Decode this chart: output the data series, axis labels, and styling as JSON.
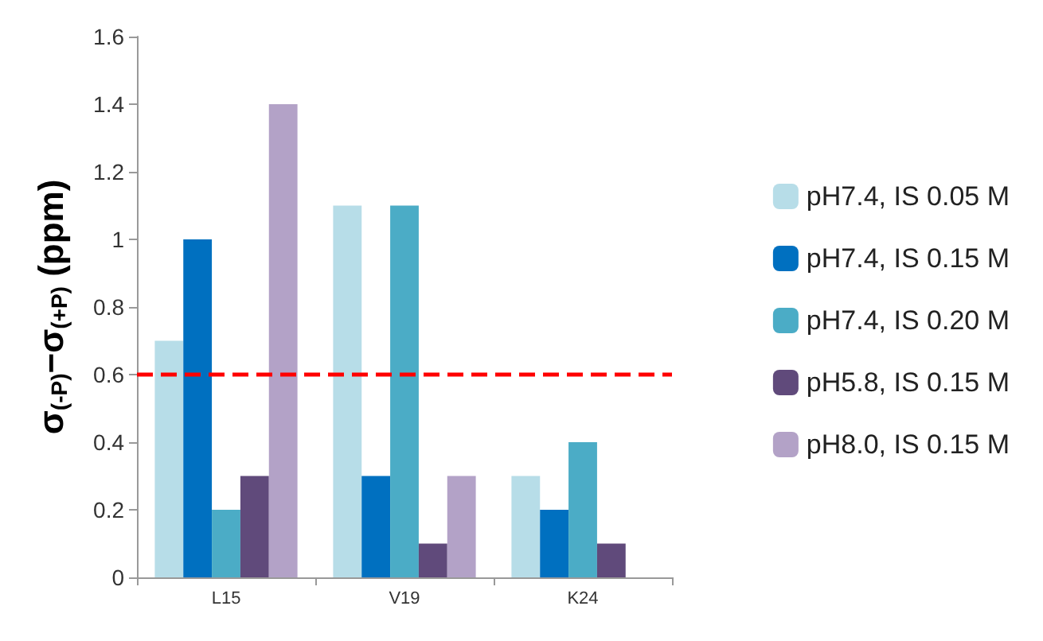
{
  "chart_data": {
    "type": "bar",
    "ylabel": "σ$_{(-P)}$−σ$_{(+P)}$ (ppm)",
    "categories": [
      "L15",
      "V19",
      "K24"
    ],
    "series": [
      {
        "name": "pH7.4, IS 0.05 M",
        "color": "#b7dde8",
        "values": [
          0.7,
          1.1,
          0.3
        ]
      },
      {
        "name": "pH7.4, IS 0.15 M",
        "color": "#0070c0",
        "values": [
          1.0,
          0.3,
          0.2
        ]
      },
      {
        "name": "pH7.4, IS 0.20 M",
        "color": "#4bacc6",
        "values": [
          0.2,
          1.1,
          0.4
        ]
      },
      {
        "name": "pH5.8, IS 0.15 M",
        "color": "#604a7b",
        "values": [
          0.3,
          0.1,
          0.1
        ]
      },
      {
        "name": "pH8.0, IS 0.15 M",
        "color": "#b3a2c7",
        "values": [
          1.4,
          0.3,
          null
        ]
      }
    ],
    "ylim": [
      0,
      1.6
    ],
    "yticks": [
      0,
      0.2,
      0.4,
      0.6,
      0.8,
      1,
      1.2,
      1.4,
      1.6
    ],
    "ref_lines": [
      {
        "axis": "y",
        "value": 0.6,
        "color": "#ff0000",
        "line_style": "dashed"
      }
    ],
    "grid": false,
    "legend": "right"
  }
}
